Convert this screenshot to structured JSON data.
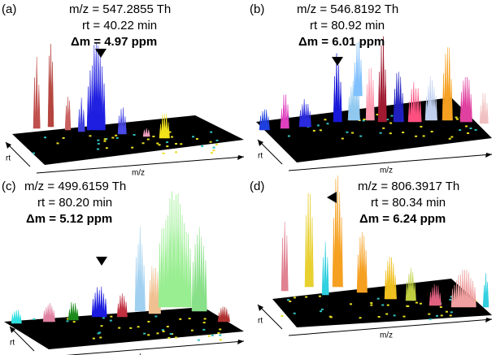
{
  "panels": [
    {
      "label": "(a)",
      "mz": "m/z = 547.2855 Th",
      "rt": "rt =  40.22 min",
      "dm": "Δm = 4.97 ppm",
      "x_axis": "m/z",
      "y_axis": "rt"
    },
    {
      "label": "(b)",
      "mz": "m/z = 546.8192 Th",
      "rt": "rt = 80.92 min",
      "dm": "Δm = 6.01 ppm",
      "x_axis": "m/z",
      "y_axis": "rt"
    },
    {
      "label": "(c)",
      "mz": "m/z = 499.6159 Th",
      "rt": "rt = 80.20 min",
      "dm": "Δm = 5.12 ppm",
      "x_axis": "m/z",
      "y_axis": "rt"
    },
    {
      "label": "(d)",
      "mz": "m/z = 806.3917 Th",
      "rt": "rt = 80.34 min",
      "dm": "Δm = 6.24 ppm",
      "x_axis": "m/z",
      "y_axis": "rt"
    }
  ]
}
